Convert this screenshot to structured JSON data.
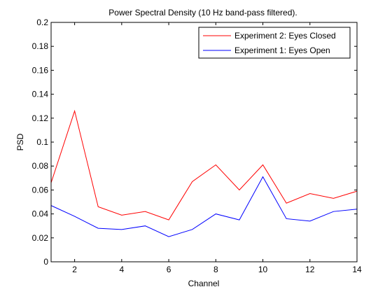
{
  "chart_data": {
    "type": "line",
    "title": "Power Spectral Density (10 Hz band-pass filtered).",
    "xlabel": "Channel",
    "ylabel": "PSD",
    "xlim": [
      1,
      14
    ],
    "ylim": [
      0,
      0.2
    ],
    "x_ticks": [
      "2",
      "4",
      "6",
      "8",
      "10",
      "12",
      "14"
    ],
    "y_ticks": [
      "0",
      "0.02",
      "0.04",
      "0.06",
      "0.08",
      "0.1",
      "0.12",
      "0.14",
      "0.16",
      "0.18",
      "0.2"
    ],
    "grid": false,
    "legend_position": "top-right",
    "x": [
      1,
      2,
      3,
      4,
      5,
      6,
      7,
      8,
      9,
      10,
      11,
      12,
      13,
      14
    ],
    "series": [
      {
        "name": "Experiment 2: Eyes Closed",
        "color": "#ff0000",
        "values": [
          0.066,
          0.126,
          0.046,
          0.039,
          0.042,
          0.035,
          0.067,
          0.081,
          0.06,
          0.081,
          0.049,
          0.057,
          0.053,
          0.059
        ]
      },
      {
        "name": "Experiment 1: Eyes Open",
        "color": "#0000ff",
        "values": [
          0.047,
          0.038,
          0.028,
          0.027,
          0.03,
          0.021,
          0.027,
          0.04,
          0.035,
          0.071,
          0.036,
          0.034,
          0.042,
          0.044
        ]
      }
    ]
  }
}
